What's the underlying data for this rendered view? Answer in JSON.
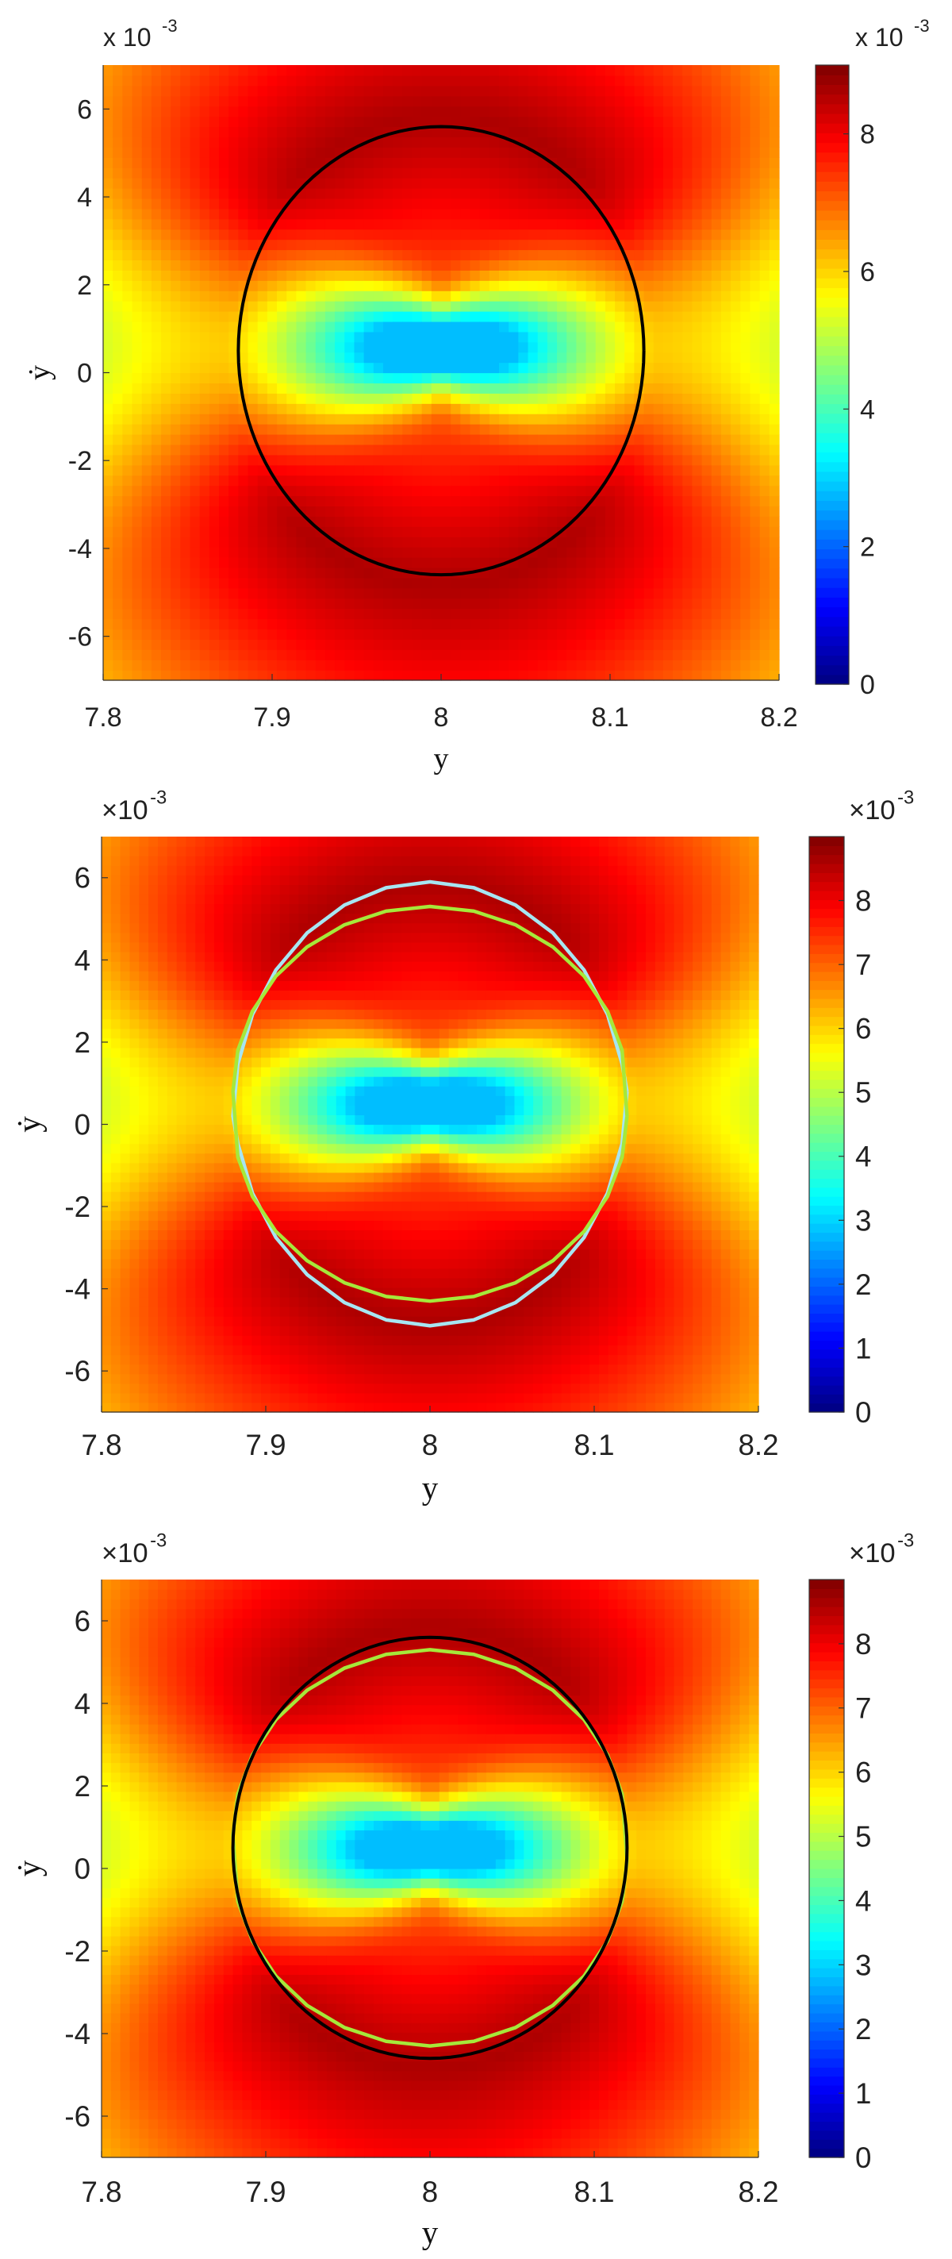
{
  "chart_data": [
    {
      "type": "heatmap",
      "title": "",
      "xlabel": "y",
      "ylabel": "ẏ",
      "xlim": [
        7.8,
        8.2
      ],
      "ylim": [
        -7,
        7
      ],
      "x_ticks": [
        "7.8",
        "7.9",
        "8",
        "8.1",
        "8.2"
      ],
      "y_ticks": [
        "-6",
        "-4",
        "-2",
        "0",
        "2",
        "4",
        "6"
      ],
      "y_multiplier": {
        "base": "x 10",
        "exponent": "-3"
      },
      "colorbar": {
        "range": [
          0,
          9
        ],
        "ticks": [
          "0",
          "2",
          "4",
          "6",
          "8"
        ],
        "multiplier": {
          "base": "x 10",
          "exponent": "-3"
        },
        "colormap": "jet"
      },
      "field": {
        "center_y": 8.0,
        "center_ydot": 0.6,
        "valley_min": 2.8
      },
      "series": [
        {
          "kind": "ellipse",
          "color": "#000000",
          "cx": 8.0,
          "cy": 0.5,
          "rx": 0.12,
          "ry": 5.1
        }
      ],
      "font_scale": 1.0
    },
    {
      "type": "heatmap",
      "title": "",
      "xlabel": "y",
      "ylabel": "ẏ",
      "xlim": [
        7.8,
        8.2
      ],
      "ylim": [
        -7,
        7
      ],
      "x_ticks": [
        "7.8",
        "7.9",
        "8",
        "8.1",
        "8.2"
      ],
      "y_ticks": [
        "-6",
        "-4",
        "-2",
        "0",
        "2",
        "4",
        "6"
      ],
      "y_multiplier": {
        "base": "×10",
        "exponent": "-3"
      },
      "colorbar": {
        "range": [
          0,
          9
        ],
        "ticks": [
          "0",
          "1",
          "2",
          "3",
          "4",
          "5",
          "6",
          "7",
          "8"
        ],
        "multiplier": {
          "base": "×10",
          "exponent": "-3"
        },
        "colormap": "jet"
      },
      "field": {
        "center_y": 8.0,
        "center_ydot": 0.5,
        "valley_min": 2.8
      },
      "series": [
        {
          "kind": "polygon",
          "color": "#a7e6f2",
          "cx": 8.0,
          "cy": 0.5,
          "rx": 0.12,
          "ry": 5.1,
          "shift": 0.6,
          "sign": 1
        },
        {
          "kind": "polygon",
          "color": "#a6e83a",
          "cx": 8.0,
          "cy": 0.5,
          "rx": 0.12,
          "ry": 5.1,
          "shift": 0.6,
          "sign": -1
        }
      ],
      "font_scale": 1.08
    },
    {
      "type": "heatmap",
      "title": "",
      "xlabel": "y",
      "ylabel": "ẏ",
      "xlim": [
        7.8,
        8.2
      ],
      "ylim": [
        -7,
        7
      ],
      "x_ticks": [
        "7.8",
        "7.9",
        "8",
        "8.1",
        "8.2"
      ],
      "y_ticks": [
        "-6",
        "-4",
        "-2",
        "0",
        "2",
        "4",
        "6"
      ],
      "y_multiplier": {
        "base": "×10",
        "exponent": "-3"
      },
      "colorbar": {
        "range": [
          0,
          9
        ],
        "ticks": [
          "0",
          "1",
          "2",
          "3",
          "4",
          "5",
          "6",
          "7",
          "8"
        ],
        "multiplier": {
          "base": "×10",
          "exponent": "-3"
        },
        "colormap": "jet"
      },
      "field": {
        "center_y": 8.0,
        "center_ydot": 0.5,
        "valley_min": 2.8
      },
      "series": [
        {
          "kind": "polygon",
          "color": "#a6e83a",
          "cx": 8.0,
          "cy": 0.5,
          "rx": 0.12,
          "ry": 5.1,
          "shift": 0.6,
          "sign": -1
        },
        {
          "kind": "ellipse",
          "color": "#000000",
          "cx": 8.0,
          "cy": 0.5,
          "rx": 0.12,
          "ry": 5.1
        }
      ],
      "font_scale": 1.08
    }
  ]
}
